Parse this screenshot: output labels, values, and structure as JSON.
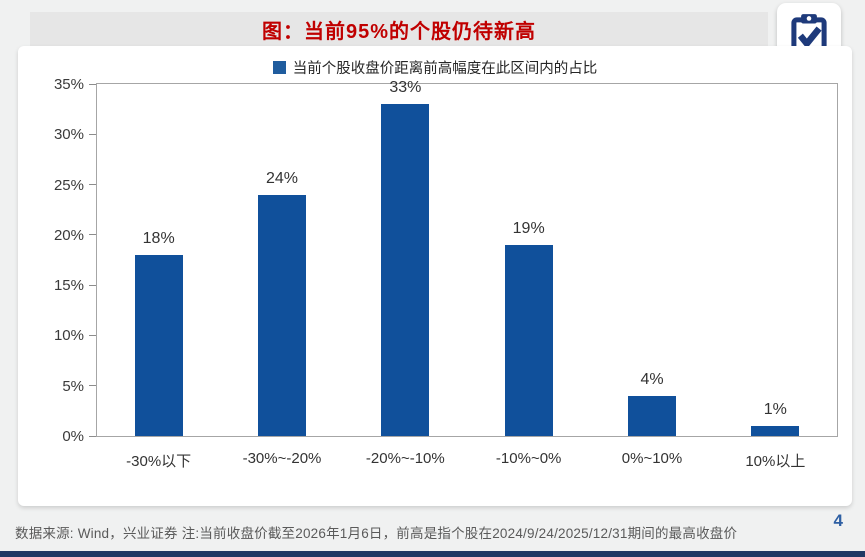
{
  "header": {
    "title": "图：当前95%的个股仍待新高"
  },
  "legend": {
    "label": "当前个股收盘价距离前高幅度在此区间内的占比"
  },
  "chart_data": {
    "type": "bar",
    "title": "图：当前95%的个股仍待新高",
    "legend_entries": [
      "当前个股收盘价距离前高幅度在此区间内的占比"
    ],
    "legend_position": "top",
    "categories": [
      "-30%以下",
      "-30%~-20%",
      "-20%~-10%",
      "-10%~0%",
      "0%~10%",
      "10%以上"
    ],
    "values": [
      18,
      24,
      33,
      19,
      4,
      1
    ],
    "value_labels": [
      "18%",
      "24%",
      "33%",
      "19%",
      "4%",
      "1%"
    ],
    "xlabel": "",
    "ylabel": "",
    "ylim": [
      0,
      35
    ],
    "ytick_labels": [
      "35%",
      "30%",
      "25%",
      "20%",
      "15%",
      "10%",
      "5%",
      "0%"
    ],
    "grid": false,
    "bar_color": "#10509B"
  },
  "footer": {
    "source_note": "数据来源: Wind，兴业证券  注:当前收盘价截至2026年1月6日，前高是指个股在2024/9/24/2025/12/31期间的最高收盘价",
    "page_number": "4"
  },
  "icons": {
    "top_right": "clipboard-check-icon"
  },
  "colors": {
    "title_red": "#C00000",
    "bar_blue": "#10509B",
    "legend_blue": "#1F5C9E",
    "icon_navy": "#1E3A7B",
    "bottom_bar_navy": "#1F3864",
    "page_number_blue": "#2E5FA3"
  }
}
